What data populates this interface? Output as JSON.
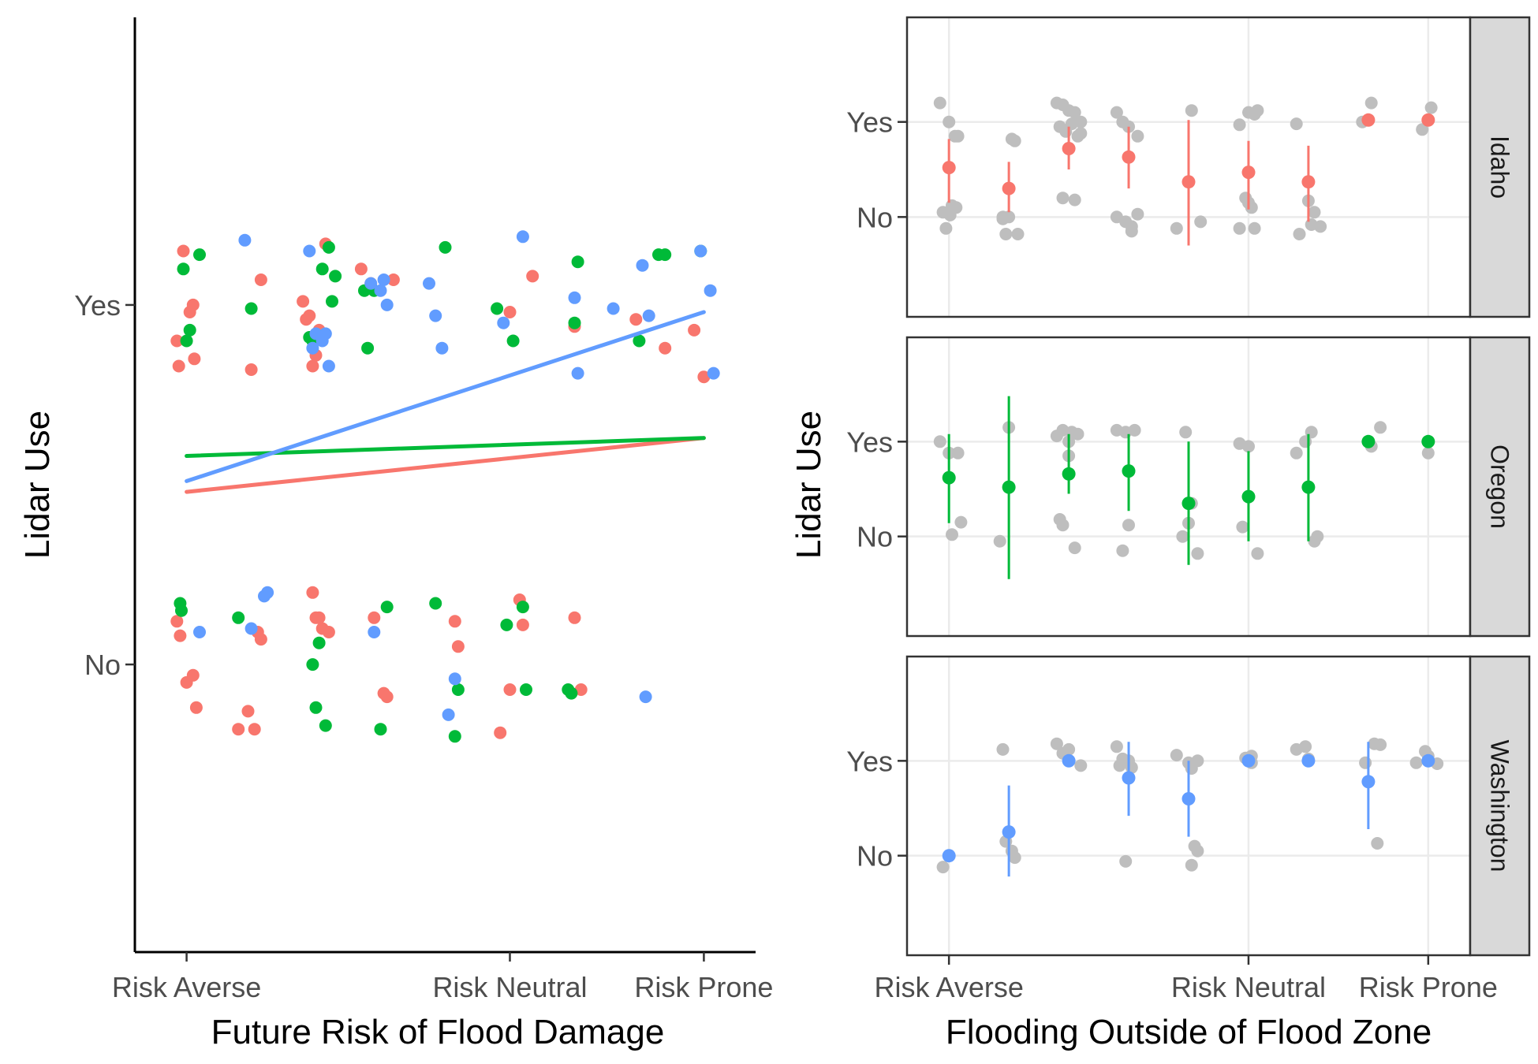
{
  "chart_data": [
    {
      "type": "scatter",
      "title": "",
      "xlabel": "Future Risk of Flood Damage",
      "ylabel": "Lidar Use",
      "x_ticks": [
        {
          "label": "Risk Averse",
          "value": 0
        },
        {
          "label": "Risk Neutral",
          "value": 5
        },
        {
          "label": "Risk Prone",
          "value": 8
        }
      ],
      "y_ticks": [
        {
          "label": "No",
          "value": 0
        },
        {
          "label": "Yes",
          "value": 1
        }
      ],
      "xlim": [
        -0.8,
        8.8
      ],
      "ylim": [
        -0.8,
        1.8
      ],
      "grid": false,
      "legend": "none",
      "colors": {
        "red": "#F8766D",
        "green": "#00BA38",
        "blue": "#619CFF"
      },
      "fit_lines": [
        {
          "color": "red",
          "x": [
            0,
            8
          ],
          "y": [
            0.48,
            0.63
          ]
        },
        {
          "color": "green",
          "x": [
            0,
            8
          ],
          "y": [
            0.58,
            0.63
          ]
        },
        {
          "color": "blue",
          "x": [
            0,
            8
          ],
          "y": [
            0.51,
            0.98
          ]
        }
      ],
      "points": [
        {
          "color": "red",
          "x": [
            -0.15,
            -0.05,
            0.1,
            0.05,
            -0.12,
            0.12,
            1.0,
            1.15,
            1.8,
            1.85,
            1.9,
            1.95,
            2.0,
            2.05,
            2.15,
            2.7,
            2.85,
            3.2,
            5.0,
            5.35,
            6.0,
            6.95,
            7.4,
            8.0,
            7.85
          ],
          "y": [
            0.9,
            1.15,
            1.0,
            0.98,
            0.83,
            0.85,
            0.82,
            1.07,
            1.01,
            0.96,
            0.97,
            0.83,
            0.86,
            0.93,
            1.17,
            1.1,
            1.06,
            1.07,
            0.98,
            1.08,
            0.94,
            0.96,
            0.88,
            0.8,
            0.93
          ]
        },
        {
          "color": "green",
          "x": [
            -0.05,
            0.05,
            0.2,
            0.0,
            1.0,
            1.9,
            1.95,
            2.1,
            2.2,
            2.25,
            2.3,
            2.75,
            2.8,
            2.9,
            4.0,
            4.8,
            5.05,
            6.0,
            6.05,
            7.0,
            7.3,
            7.4,
            7.95
          ],
          "y": [
            1.1,
            0.93,
            1.14,
            0.9,
            0.99,
            0.91,
            0.9,
            1.1,
            1.16,
            1.01,
            1.08,
            1.04,
            0.88,
            1.04,
            1.16,
            0.99,
            0.9,
            0.95,
            1.12,
            0.9,
            1.14,
            1.14,
            1.15
          ],
          "_skip": true
        },
        {
          "color": "blue",
          "x": [
            0.9,
            1.9,
            2.0,
            2.1,
            2.2,
            1.95,
            2.15,
            2.85,
            3.0,
            3.05,
            3.1,
            3.75,
            3.85,
            3.95,
            5.2,
            4.9,
            6.0,
            6.05,
            6.6,
            7.05,
            7.15,
            8.1,
            7.95,
            8.15
          ],
          "y": [
            1.18,
            1.15,
            0.92,
            0.9,
            0.83,
            0.88,
            0.92,
            1.06,
            1.04,
            1.07,
            1.0,
            1.06,
            0.97,
            0.88,
            1.19,
            0.95,
            1.02,
            0.81,
            0.99,
            1.11,
            0.97,
            1.04,
            1.15,
            0.81
          ]
        },
        {
          "color": "red",
          "x": [
            -0.15,
            -0.1,
            0.0,
            0.15,
            0.1,
            0.8,
            0.95,
            1.05,
            1.1,
            1.15,
            1.95,
            2.0,
            2.05,
            2.1,
            2.2,
            2.9,
            3.05,
            3.1,
            4.15,
            4.2,
            4.85,
            5.0,
            5.15,
            5.2,
            6.0,
            6.1
          ],
          "y": [
            0.12,
            0.08,
            -0.05,
            -0.12,
            -0.03,
            -0.18,
            -0.13,
            -0.18,
            0.09,
            0.07,
            0.2,
            0.13,
            0.13,
            0.1,
            0.09,
            0.13,
            -0.08,
            -0.09,
            0.12,
            0.05,
            -0.19,
            -0.07,
            0.18,
            0.11,
            0.13,
            -0.07
          ]
        },
        {
          "color": "green",
          "x": [
            -0.1,
            -0.08,
            0.8,
            1.95,
            2.0,
            2.05,
            2.15,
            3.0,
            3.1,
            3.85,
            4.15,
            4.2,
            4.95,
            5.2,
            5.25,
            5.9,
            5.95
          ],
          "y": [
            0.17,
            0.15,
            0.13,
            0.0,
            -0.12,
            0.06,
            -0.17,
            -0.18,
            0.16,
            0.17,
            -0.2,
            -0.07,
            0.11,
            0.16,
            -0.07,
            -0.07,
            -0.08
          ]
        },
        {
          "color": "blue",
          "x": [
            0.2,
            1.0,
            1.2,
            1.25,
            2.9,
            4.05,
            4.15,
            7.1
          ],
          "y": [
            0.09,
            0.1,
            0.19,
            0.2,
            0.09,
            -0.14,
            -0.04,
            -0.09
          ]
        }
      ]
    },
    {
      "type": "scatter",
      "title": "",
      "xlabel": "Flooding Outside of Flood Zone",
      "ylabel": "Lidar Use",
      "x_ticks": [
        {
          "label": "Risk Averse",
          "value": 0
        },
        {
          "label": "Risk Neutral",
          "value": 5
        },
        {
          "label": "Risk Prone",
          "value": 8
        }
      ],
      "y_ticks": [
        {
          "label": "No",
          "value": 0
        },
        {
          "label": "Yes",
          "value": 1
        }
      ],
      "xlim": [
        -0.7,
        8.7
      ],
      "ylim": [
        -1.05,
        2.1
      ],
      "grid": true,
      "legend": "none",
      "facets": [
        {
          "strip": "Idaho",
          "color": "#F8766D",
          "means": [
            {
              "x": 0,
              "mean": 0.52,
              "lo": 0.15,
              "hi": 0.82
            },
            {
              "x": 1,
              "mean": 0.3,
              "lo": 0.05,
              "hi": 0.58
            },
            {
              "x": 2,
              "mean": 0.72,
              "lo": 0.5,
              "hi": 0.95
            },
            {
              "x": 3,
              "mean": 0.63,
              "lo": 0.3,
              "hi": 0.95
            },
            {
              "x": 4,
              "mean": 0.37,
              "lo": -0.3,
              "hi": 1.02
            },
            {
              "x": 5,
              "mean": 0.47,
              "lo": 0.08,
              "hi": 0.8
            },
            {
              "x": 6,
              "mean": 0.37,
              "lo": -0.05,
              "hi": 0.75
            },
            {
              "x": 7,
              "mean": 1.02
            },
            {
              "x": 8,
              "mean": 1.02
            }
          ],
          "raw": {
            "x": [
              -0.15,
              0.0,
              0.1,
              0.15,
              -0.1,
              -0.05,
              0.05,
              0.12,
              0.02,
              0.9,
              1.05,
              1.1,
              0.95,
              1.0,
              1.15,
              0.9,
              1.8,
              1.9,
              2.0,
              2.1,
              2.2,
              1.85,
              1.95,
              2.05,
              2.15,
              2.2,
              1.9,
              2.1,
              2.8,
              2.9,
              3.0,
              3.15,
              2.95,
              3.05,
              2.8,
              3.05,
              3.15,
              3.8,
              4.05,
              4.2,
              4.85,
              5.0,
              5.1,
              5.15,
              4.95,
              4.85,
              5.0,
              5.05,
              5.1,
              5.8,
              6.0,
              6.1,
              6.05,
              5.85,
              6.2,
              6.9,
              7.05,
              7.9,
              8.05
            ],
            "y": [
              1.2,
              1.0,
              0.85,
              0.85,
              0.05,
              -0.12,
              0.12,
              0.1,
              0.02,
              -0.02,
              0.82,
              0.8,
              -0.18,
              0.0,
              -0.18,
              0.0,
              1.2,
              1.18,
              1.12,
              1.1,
              1.0,
              0.95,
              0.9,
              0.98,
              0.85,
              0.88,
              0.2,
              0.18,
              1.1,
              1.0,
              0.95,
              0.85,
              -0.05,
              -0.1,
              0.0,
              -0.15,
              0.03,
              -0.12,
              1.12,
              -0.05,
              0.97,
              1.1,
              1.08,
              1.12,
              0.2,
              -0.12,
              0.15,
              0.1,
              -0.12,
              0.98,
              0.17,
              0.05,
              -0.08,
              -0.18,
              -0.1,
              1.0,
              1.2,
              0.92,
              1.15
            ]
          }
        },
        {
          "strip": "Oregon",
          "color": "#00BA38",
          "means": [
            {
              "x": 0,
              "mean": 0.62,
              "lo": 0.14,
              "hi": 1.08
            },
            {
              "x": 1,
              "mean": 0.52,
              "lo": -0.45,
              "hi": 1.48
            },
            {
              "x": 2,
              "mean": 0.66,
              "lo": 0.45,
              "hi": 1.08
            },
            {
              "x": 3,
              "mean": 0.69,
              "lo": 0.27,
              "hi": 1.08
            },
            {
              "x": 4,
              "mean": 0.35,
              "lo": -0.3,
              "hi": 1.0
            },
            {
              "x": 5,
              "mean": 0.42,
              "lo": -0.05,
              "hi": 0.9
            },
            {
              "x": 6,
              "mean": 0.52,
              "lo": -0.05,
              "hi": 1.08
            },
            {
              "x": 7,
              "mean": 1.0
            },
            {
              "x": 8,
              "mean": 1.0
            }
          ],
          "raw": {
            "x": [
              -0.15,
              0.0,
              0.15,
              0.05,
              0.2,
              0.85,
              1.0,
              1.8,
              1.9,
              2.05,
              2.0,
              2.15,
              2.0,
              1.85,
              1.9,
              2.1,
              2.8,
              2.95,
              3.1,
              2.9,
              3.0,
              3.95,
              4.05,
              4.0,
              3.9,
              4.15,
              4.85,
              5.0,
              4.9,
              5.15,
              5.8,
              6.1,
              6.15,
              5.95,
              6.05,
              7.05,
              7.2,
              8.0
            ],
            "y": [
              1.0,
              0.88,
              0.88,
              0.02,
              0.15,
              -0.05,
              1.15,
              1.06,
              1.12,
              1.1,
              1.0,
              1.08,
              0.85,
              0.18,
              0.12,
              -0.12,
              1.12,
              1.1,
              1.12,
              -0.15,
              0.12,
              1.1,
              0.35,
              0.14,
              0.0,
              -0.18,
              0.98,
              0.95,
              0.1,
              -0.18,
              0.88,
              -0.05,
              0.0,
              1.0,
              1.1,
              0.95,
              1.15,
              0.88
            ]
          }
        },
        {
          "strip": "Washington",
          "color": "#619CFF",
          "means": [
            {
              "x": 0,
              "mean": 0.0
            },
            {
              "x": 1,
              "mean": 0.25,
              "lo": -0.22,
              "hi": 0.74
            },
            {
              "x": 2,
              "mean": 1.0
            },
            {
              "x": 3,
              "mean": 0.82,
              "lo": 0.42,
              "hi": 1.2
            },
            {
              "x": 4,
              "mean": 0.6,
              "lo": 0.2,
              "hi": 1.0
            },
            {
              "x": 5,
              "mean": 1.0
            },
            {
              "x": 6,
              "mean": 1.0
            },
            {
              "x": 7,
              "mean": 0.78,
              "lo": 0.28,
              "hi": 1.2
            },
            {
              "x": 8,
              "mean": 1.0
            }
          ],
          "raw": {
            "x": [
              -0.1,
              0.9,
              0.95,
              1.05,
              1.1,
              1.8,
              1.9,
              2.0,
              2.2,
              2.8,
              2.85,
              2.9,
              3.0,
              3.05,
              2.95,
              3.8,
              4.0,
              4.05,
              4.15,
              4.1,
              4.05,
              4.15,
              4.95,
              5.05,
              5.05,
              5.8,
              5.95,
              6.0,
              6.95,
              7.2,
              7.1,
              7.15,
              7.8,
              7.95,
              8.0,
              8.15
            ],
            "y": [
              -0.12,
              1.12,
              0.15,
              0.05,
              -0.02,
              1.18,
              1.08,
              1.12,
              0.95,
              1.15,
              0.95,
              1.02,
              1.0,
              0.93,
              -0.06,
              1.06,
              0.98,
              0.92,
              1.0,
              0.1,
              -0.1,
              0.05,
              1.03,
              1.05,
              0.98,
              1.12,
              1.15,
              1.02,
              0.98,
              1.17,
              1.18,
              0.13,
              0.98,
              1.1,
              1.05,
              0.97
            ]
          }
        }
      ]
    }
  ]
}
